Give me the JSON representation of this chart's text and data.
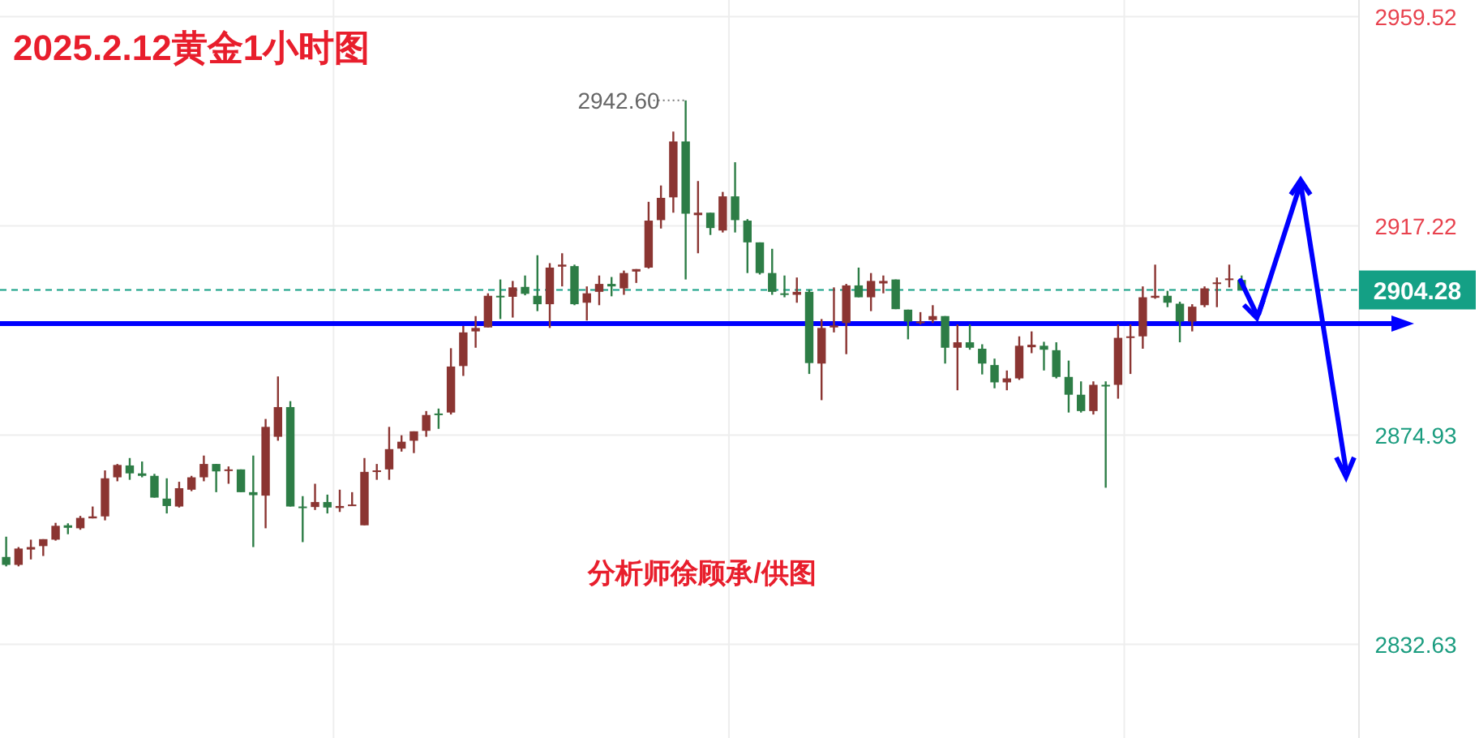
{
  "chart_data": {
    "type": "candlestick",
    "title": "2025.2.12黄金1小时图",
    "annotations": [
      "2942.60",
      "分析师徐顾承/供图"
    ],
    "categories": [
      null,
      null,
      null,
      null,
      null,
      null,
      null,
      null,
      null,
      null,
      null,
      null,
      null,
      null,
      null,
      null,
      null,
      null,
      null,
      null,
      null,
      null,
      null,
      null,
      null,
      null,
      null,
      null,
      null,
      null,
      null,
      null,
      null,
      null,
      null,
      null,
      null,
      null,
      null,
      null,
      null,
      null,
      null,
      null,
      null,
      null,
      null,
      null,
      null,
      null,
      null,
      null,
      null,
      null,
      null,
      null,
      null,
      null,
      null,
      null,
      null,
      null,
      null,
      null,
      null,
      null,
      null,
      null,
      null,
      null,
      null,
      null,
      null,
      null,
      null,
      null,
      null,
      null,
      null,
      null,
      null,
      null,
      null,
      null,
      null,
      null,
      null,
      null,
      null,
      null,
      null,
      null,
      null,
      null,
      null,
      null,
      null,
      null,
      null,
      null,
      null,
      null,
      null,
      null,
      null,
      null,
      null,
      null,
      null,
      null
    ],
    "ohlc": [
      [
        2850.3,
        2854.4,
        2848.4,
        2848.7
      ],
      [
        2848.7,
        2852.3,
        2848.4,
        2852.0
      ],
      [
        2851.8,
        2853.8,
        2849.8,
        2852.3
      ],
      [
        2852.5,
        2853.9,
        2850.5,
        2853.9
      ],
      [
        2853.8,
        2857.2,
        2853.6,
        2856.6
      ],
      [
        2856.7,
        2857.1,
        2854.9,
        2856.2
      ],
      [
        2856.1,
        2858.6,
        2855.8,
        2858.2
      ],
      [
        2858.1,
        2860.5,
        2858.1,
        2858.5
      ],
      [
        2858.5,
        2867.8,
        2857.7,
        2866.2
      ],
      [
        2866.4,
        2869.1,
        2865.6,
        2868.9
      ],
      [
        2868.8,
        2870.3,
        2865.9,
        2867.2
      ],
      [
        2867.2,
        2869.6,
        2866.4,
        2866.7
      ],
      [
        2866.7,
        2867.1,
        2862.3,
        2862.3
      ],
      [
        2862.1,
        2866.2,
        2859.1,
        2860.6
      ],
      [
        2860.5,
        2865.5,
        2860.3,
        2864.2
      ],
      [
        2863.9,
        2866.7,
        2863.6,
        2866.4
      ],
      [
        2866.4,
        2870.8,
        2865.6,
        2869.1
      ],
      [
        2869.1,
        2869.1,
        2863.4,
        2867.6
      ],
      [
        2867.7,
        2868.6,
        2865.1,
        2868.0
      ],
      [
        2868.0,
        2868.0,
        2863.4,
        2863.4
      ],
      [
        2863.4,
        2870.8,
        2852.3,
        2862.8
      ],
      [
        2862.7,
        2878.2,
        2856.1,
        2876.6
      ],
      [
        2874.6,
        2886.8,
        2873.8,
        2880.6
      ],
      [
        2880.6,
        2881.8,
        2860.5,
        2860.5
      ],
      [
        2860.5,
        2862.6,
        2853.3,
        2860.3
      ],
      [
        2860.4,
        2865.1,
        2859.8,
        2861.4
      ],
      [
        2861.4,
        2862.9,
        2859.1,
        2860.3
      ],
      [
        2860.2,
        2863.9,
        2859.4,
        2860.6
      ],
      [
        2860.6,
        2863.4,
        2860.6,
        2860.9
      ],
      [
        2856.7,
        2870.3,
        2856.7,
        2867.5
      ],
      [
        2867.5,
        2869.1,
        2865.9,
        2867.8
      ],
      [
        2868.0,
        2876.6,
        2865.9,
        2872.1
      ],
      [
        2872.2,
        2874.9,
        2871.6,
        2873.6
      ],
      [
        2873.8,
        2875.7,
        2871.3,
        2875.7
      ],
      [
        2875.8,
        2879.8,
        2874.6,
        2879.0
      ],
      [
        2879.3,
        2880.3,
        2876.2,
        2879.1
      ],
      [
        2879.5,
        2892.5,
        2879.1,
        2888.8
      ],
      [
        2888.9,
        2897.0,
        2886.9,
        2895.7
      ],
      [
        2895.9,
        2899.0,
        2892.6,
        2896.6
      ],
      [
        2896.7,
        2903.6,
        2896.7,
        2903.1
      ],
      [
        2903.1,
        2906.4,
        2898.4,
        2902.9
      ],
      [
        2902.9,
        2906.1,
        2898.7,
        2904.8
      ],
      [
        2904.9,
        2907.2,
        2903.2,
        2903.5
      ],
      [
        2903.1,
        2911.3,
        2900.0,
        2901.4
      ],
      [
        2901.4,
        2909.7,
        2896.6,
        2908.8
      ],
      [
        2909.0,
        2911.7,
        2905.0,
        2909.4
      ],
      [
        2909.1,
        2909.4,
        2901.2,
        2901.4
      ],
      [
        2901.7,
        2905.0,
        2898.1,
        2903.6
      ],
      [
        2903.9,
        2907.2,
        2901.2,
        2905.5
      ],
      [
        2905.5,
        2906.9,
        2903.0,
        2905.0
      ],
      [
        2904.6,
        2908.2,
        2903.3,
        2907.7
      ],
      [
        2908.0,
        2908.5,
        2905.7,
        2908.5
      ],
      [
        2908.8,
        2922.1,
        2908.6,
        2918.3
      ],
      [
        2918.4,
        2925.4,
        2916.7,
        2922.9
      ],
      [
        2923.0,
        2936.3,
        2919.9,
        2934.3
      ],
      [
        2934.3,
        2942.6,
        2906.4,
        2919.7
      ],
      [
        2919.4,
        2926.3,
        2911.7,
        2919.9
      ],
      [
        2919.9,
        2919.9,
        2915.4,
        2916.8
      ],
      [
        2916.3,
        2924.1,
        2915.9,
        2923.2
      ],
      [
        2923.2,
        2930.1,
        2915.9,
        2918.4
      ],
      [
        2918.3,
        2918.6,
        2907.7,
        2913.9
      ],
      [
        2913.9,
        2913.9,
        2907.4,
        2907.7
      ],
      [
        2907.7,
        2912.6,
        2903.3,
        2903.9
      ],
      [
        2903.6,
        2907.2,
        2902.8,
        2903.3
      ],
      [
        2903.3,
        2906.8,
        2901.7,
        2903.9
      ],
      [
        2903.9,
        2904.4,
        2887.3,
        2889.5
      ],
      [
        2889.4,
        2898.4,
        2882.0,
        2896.6
      ],
      [
        2896.7,
        2904.8,
        2895.7,
        2897.1
      ],
      [
        2897.6,
        2905.5,
        2891.3,
        2905.2
      ],
      [
        2905.2,
        2908.8,
        2902.8,
        2902.8
      ],
      [
        2902.8,
        2907.7,
        2900.0,
        2906.1
      ],
      [
        2905.6,
        2907.2,
        2903.6,
        2906.1
      ],
      [
        2906.4,
        2906.4,
        2900.4,
        2900.4
      ],
      [
        2900.3,
        2900.3,
        2894.3,
        2897.9
      ],
      [
        2897.6,
        2899.8,
        2897.3,
        2897.9
      ],
      [
        2898.2,
        2901.2,
        2897.6,
        2899.0
      ],
      [
        2899.0,
        2899.0,
        2889.4,
        2892.6
      ],
      [
        2892.6,
        2897.3,
        2884.0,
        2893.7
      ],
      [
        2893.7,
        2897.3,
        2892.2,
        2892.6
      ],
      [
        2892.4,
        2893.3,
        2887.2,
        2889.4
      ],
      [
        2889.1,
        2890.4,
        2884.4,
        2885.6
      ],
      [
        2885.6,
        2888.0,
        2884.0,
        2886.4
      ],
      [
        2886.4,
        2894.9,
        2886.1,
        2893.0
      ],
      [
        2892.7,
        2895.9,
        2891.5,
        2893.2
      ],
      [
        2893.0,
        2893.8,
        2888.0,
        2892.2
      ],
      [
        2892.1,
        2893.7,
        2886.4,
        2886.7
      ],
      [
        2886.7,
        2890.0,
        2879.5,
        2883.1
      ],
      [
        2883.1,
        2885.8,
        2879.5,
        2879.8
      ],
      [
        2879.8,
        2885.8,
        2879.1,
        2885.1
      ],
      [
        2885.1,
        2885.8,
        2864.3,
        2884.8
      ],
      [
        2885.1,
        2897.3,
        2882.3,
        2894.6
      ],
      [
        2894.6,
        2897.3,
        2887.3,
        2894.9
      ],
      [
        2894.9,
        2905.0,
        2892.4,
        2902.8
      ],
      [
        2902.7,
        2909.4,
        2902.5,
        2903.1
      ],
      [
        2903.1,
        2904.1,
        2900.8,
        2901.7
      ],
      [
        2901.5,
        2901.9,
        2893.7,
        2897.9
      ],
      [
        2897.9,
        2901.4,
        2895.9,
        2900.9
      ],
      [
        2901.2,
        2905.0,
        2900.8,
        2904.6
      ],
      [
        2905.5,
        2906.8,
        2900.8,
        2905.8
      ],
      [
        2906.3,
        2909.4,
        2904.8,
        2906.6
      ],
      [
        2906.3,
        2907.2,
        2904.2,
        2904.28
      ],
      null,
      null,
      null,
      null,
      null,
      null,
      null,
      null,
      null
    ],
    "ylim": [
      2813.7,
      2962.9
    ],
    "yticks": [
      2832.63,
      2874.93,
      2917.22,
      2959.52
    ],
    "grid": true,
    "ref_lines": [
      {
        "axis": "y",
        "value": 2904.28,
        "label": "2904.28",
        "color": "#14a085",
        "line_style": "dashed"
      },
      {
        "axis": "y",
        "value": 2897.5,
        "color": "#0000ff"
      }
    ]
  }
}
